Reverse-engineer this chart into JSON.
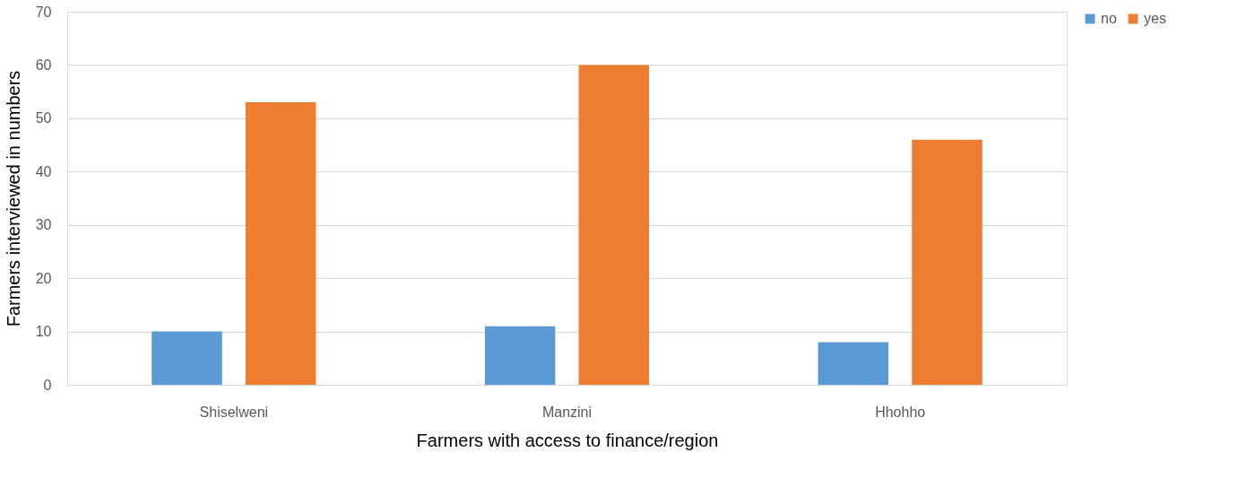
{
  "chart_data": {
    "type": "bar",
    "xlabel": "Farmers with access to finance/region",
    "ylabel": "Farmers interviewed in numbers",
    "categories": [
      "Shiselweni",
      "Manzini",
      "Hhohho"
    ],
    "series": [
      {
        "name": "no",
        "color": "#5b9bd5",
        "values": [
          10,
          11,
          8
        ]
      },
      {
        "name": "yes",
        "color": "#ed7d31",
        "values": [
          53,
          60,
          46
        ]
      }
    ],
    "ylim": [
      0,
      70
    ],
    "yticks": [
      0,
      10,
      20,
      30,
      40,
      50,
      60,
      70
    ],
    "grid": "y",
    "legend": "right"
  }
}
